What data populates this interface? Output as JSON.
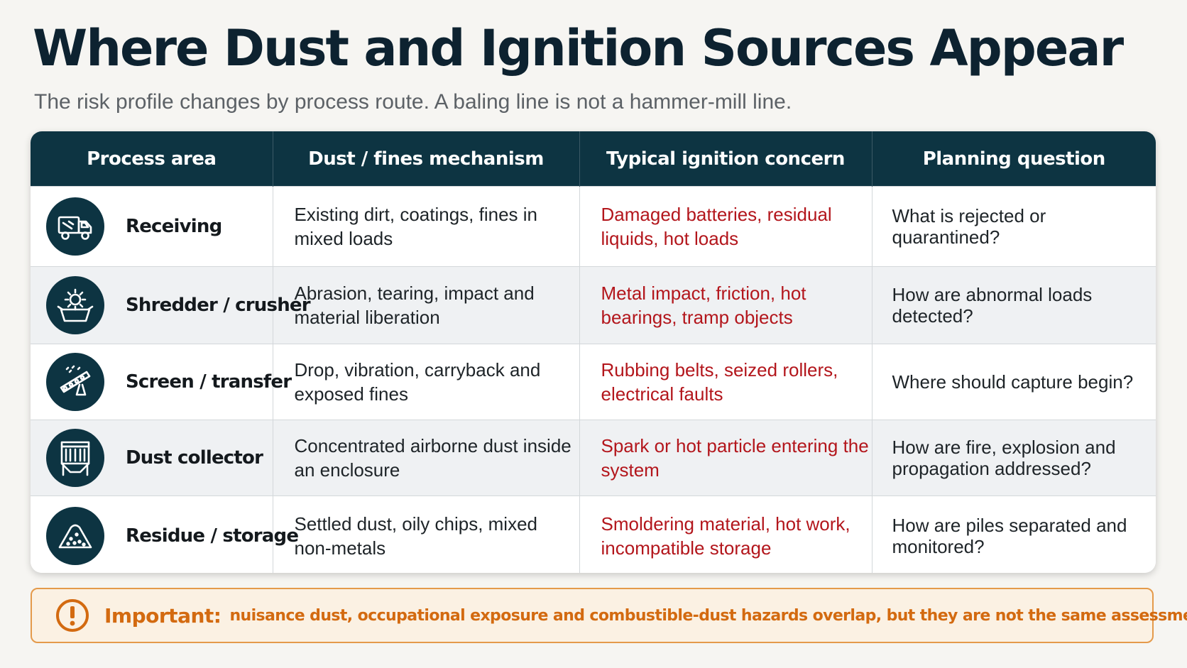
{
  "title": "Where Dust and Ignition Sources Appear",
  "subtitle": "The risk profile changes by process route. A baling line is not a hammer-mill line.",
  "table": {
    "headers": [
      "Process area",
      "Dust / fines mechanism",
      "Typical ignition concern",
      "Planning question"
    ],
    "rows": [
      {
        "icon": "truck-icon",
        "area": "Receiving",
        "mechanism": "Existing dirt, coatings, fines in mixed loads",
        "ignition": "Damaged batteries, residual liquids, hot loads",
        "question": "What is rejected or quarantined?"
      },
      {
        "icon": "gear-shredder-icon",
        "area": "Shredder / crusher",
        "mechanism": "Abrasion, tearing, impact and material liberation",
        "ignition": "Metal impact, friction, hot bearings, tramp objects",
        "question": "How are abnormal loads detected?"
      },
      {
        "icon": "conveyor-icon",
        "area": "Screen / transfer",
        "mechanism": "Drop, vibration, carryback and exposed fines",
        "ignition": "Rubbing belts, seized rollers, electrical faults",
        "question": "Where should capture begin?"
      },
      {
        "icon": "dust-collector-icon",
        "area": "Dust collector",
        "mechanism": "Concentrated airborne dust inside an enclosure",
        "ignition": "Spark or hot particle entering the system",
        "question": "How are fire, explosion and propagation addressed?"
      },
      {
        "icon": "pile-icon",
        "area": "Residue / storage",
        "mechanism": "Settled dust, oily chips, mixed non-metals",
        "ignition": "Smoldering material, hot work, incompatible storage",
        "question": "How are piles separated and monitored?"
      }
    ]
  },
  "callout": {
    "icon": "alert-icon",
    "lead": "Important:",
    "text": "nuisance dust, occupational exposure and combustible-dust hazards overlap, but they are not the same assessment."
  },
  "colors": {
    "header_bg": "#0d3442",
    "ignition_text": "#b3161c",
    "callout_accent": "#d36a10",
    "callout_bg": "#fbf1e3"
  }
}
